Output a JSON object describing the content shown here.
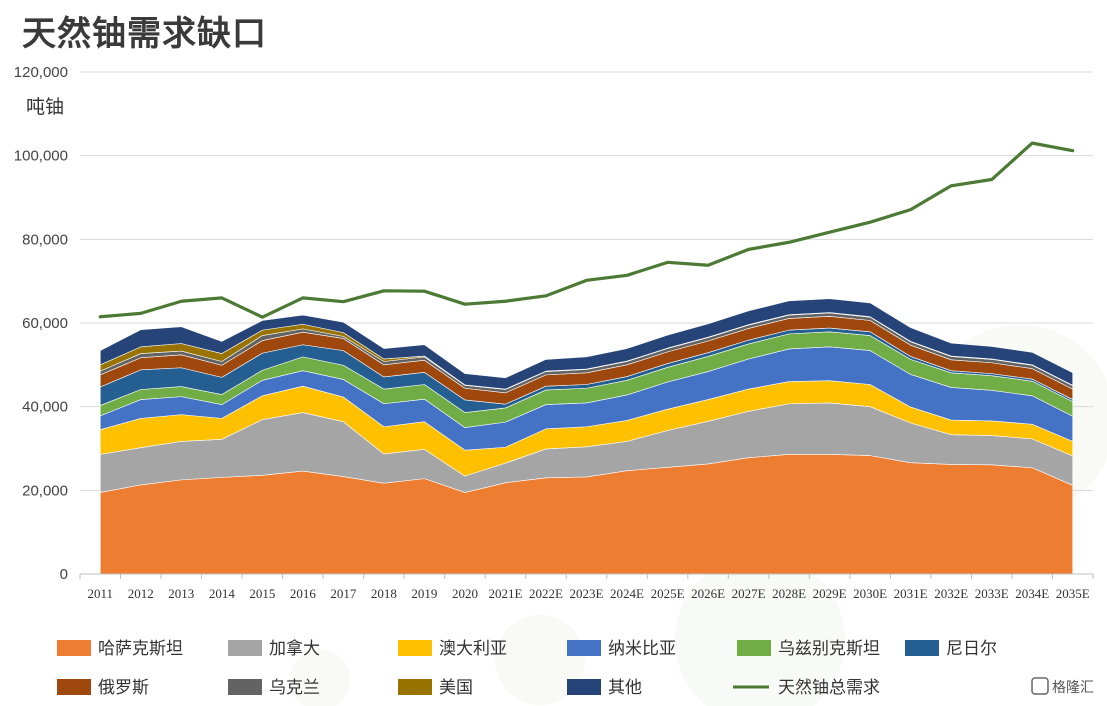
{
  "chart_data": {
    "type": "area",
    "title": "天然铀需求缺口",
    "ylabel": "吨铀",
    "xlabel": "",
    "ylim": [
      0,
      120000
    ],
    "yticks": [
      0,
      20000,
      40000,
      60000,
      80000,
      100000,
      120000
    ],
    "ytick_labels": [
      "0",
      "20,000",
      "40,000",
      "60,000",
      "80,000",
      "100,000",
      "120,000"
    ],
    "grid": true,
    "legend_position": "bottom",
    "categories": [
      "2011",
      "2012",
      "2013",
      "2014",
      "2015",
      "2016",
      "2017",
      "2018",
      "2019",
      "2020",
      "2021E",
      "2022E",
      "2023E",
      "2024E",
      "2025E",
      "2026E",
      "2027E",
      "2028E",
      "2029E",
      "2030E",
      "2031E",
      "2032E",
      "2033E",
      "2034E",
      "2035E"
    ],
    "series": [
      {
        "name": "哈萨克斯坦",
        "color": "#ed7d31",
        "values": [
          19500,
          21300,
          22500,
          23100,
          23600,
          24600,
          23300,
          21700,
          22800,
          19500,
          21800,
          23000,
          23200,
          24700,
          25500,
          26300,
          27800,
          28600,
          28600,
          28300,
          26600,
          26200,
          26100,
          25400,
          21200
        ]
      },
      {
        "name": "加拿大",
        "color": "#a5a5a5",
        "values": [
          9100,
          8900,
          9200,
          9100,
          13300,
          14000,
          13100,
          7000,
          7000,
          3900,
          4700,
          6900,
          7200,
          7000,
          8800,
          10200,
          11100,
          12100,
          12300,
          11700,
          9500,
          7100,
          7000,
          6900,
          7000
        ]
      },
      {
        "name": "澳大利亚",
        "color": "#ffc000",
        "values": [
          5900,
          7000,
          6400,
          5000,
          5700,
          6300,
          5900,
          6500,
          6600,
          6200,
          3800,
          4800,
          4800,
          5000,
          5100,
          5200,
          5300,
          5300,
          5300,
          5300,
          3800,
          3500,
          3500,
          3500,
          3500
        ]
      },
      {
        "name": "纳米比亚",
        "color": "#4472c4",
        "values": [
          3300,
          4500,
          4300,
          3300,
          3700,
          3700,
          4200,
          5500,
          5400,
          5400,
          6000,
          5800,
          5700,
          6100,
          6500,
          6700,
          7200,
          7800,
          8100,
          8100,
          7800,
          7800,
          7300,
          6800,
          6000
        ]
      },
      {
        "name": "乌兹别克斯坦",
        "color": "#70ad47",
        "values": [
          2500,
          2400,
          2400,
          2400,
          2400,
          3300,
          3400,
          3500,
          3500,
          3600,
          3400,
          3500,
          3500,
          3500,
          3500,
          3600,
          3600,
          3600,
          3600,
          3600,
          3600,
          3500,
          3500,
          3500,
          3500
        ]
      },
      {
        "name": "尼日尔",
        "color": "#255e91",
        "values": [
          4400,
          4700,
          4500,
          4100,
          4100,
          2900,
          3500,
          2900,
          2900,
          3000,
          900,
          900,
          900,
          900,
          900,
          900,
          900,
          900,
          900,
          900,
          700,
          500,
          500,
          500,
          500
        ]
      },
      {
        "name": "俄罗斯",
        "color": "#9e480e",
        "values": [
          2900,
          2900,
          3100,
          2900,
          3000,
          3000,
          2900,
          2900,
          2900,
          2800,
          2700,
          2700,
          2800,
          2800,
          2800,
          2800,
          2800,
          2800,
          2800,
          2700,
          2700,
          2600,
          2600,
          2500,
          2500
        ]
      },
      {
        "name": "乌克兰",
        "color": "#636363",
        "values": [
          900,
          1000,
          900,
          900,
          1200,
          800,
          500,
          800,
          800,
          700,
          800,
          800,
          800,
          800,
          800,
          800,
          800,
          800,
          800,
          800,
          800,
          800,
          800,
          800,
          800
        ]
      },
      {
        "name": "美国",
        "color": "#997300",
        "values": [
          1500,
          1600,
          1800,
          1900,
          1300,
          1100,
          900,
          600,
          200,
          100,
          100,
          100,
          100,
          100,
          100,
          100,
          100,
          100,
          100,
          100,
          100,
          100,
          100,
          100,
          100
        ]
      },
      {
        "name": "其他",
        "color": "#264478",
        "values": [
          3400,
          4100,
          4000,
          2900,
          2300,
          2200,
          2500,
          2500,
          2700,
          2700,
          2700,
          2800,
          2900,
          3000,
          3100,
          3200,
          3300,
          3300,
          3300,
          3300,
          3300,
          3100,
          3000,
          3000,
          3000
        ]
      }
    ],
    "line_series": {
      "name": "天然铀总需求",
      "color": "#4c7a34",
      "values": [
        61500,
        62300,
        65200,
        66000,
        61400,
        66000,
        65100,
        67700,
        67600,
        64500,
        65200,
        66500,
        70200,
        71400,
        74500,
        73800,
        77600,
        79300,
        81700,
        84100,
        87100,
        92800,
        94300,
        103000,
        101200
      ]
    }
  },
  "watermark": {
    "text": "格隆汇"
  }
}
